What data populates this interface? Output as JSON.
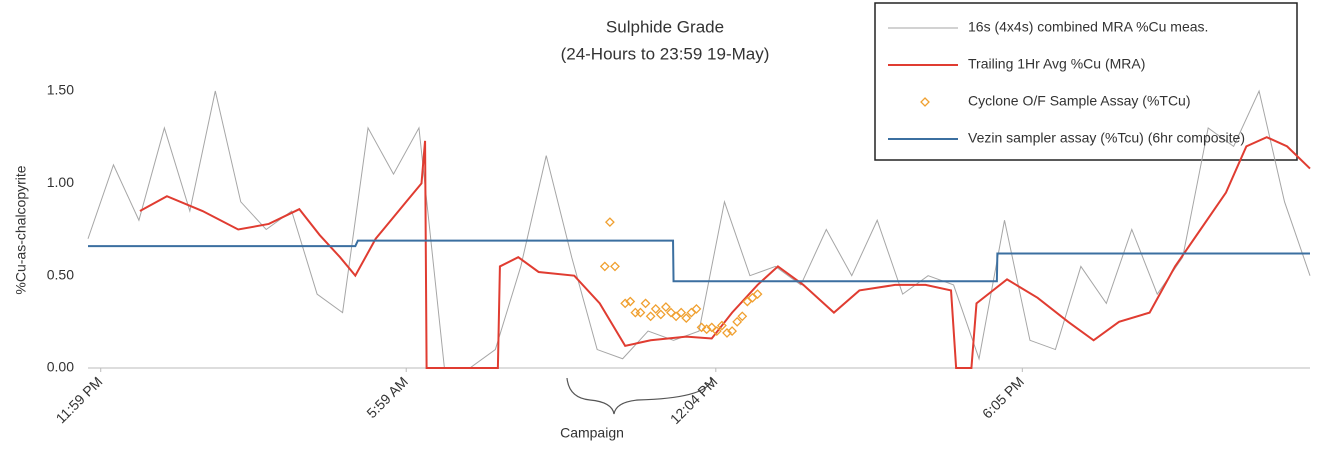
{
  "chart_data": {
    "type": "line",
    "title": "Sulphide Grade",
    "subtitle": "(24-Hours to 23:59 19-May)",
    "y_label": "%Cu-as-chalcopyrite",
    "annotation": "Campaign",
    "xlim": [
      -0.25,
      23.75
    ],
    "xticks": [
      {
        "value": 0,
        "label": "11:59 PM"
      },
      {
        "value": 6,
        "label": "5:59 AM"
      },
      {
        "value": 12.08,
        "label": "12:04 PM"
      },
      {
        "value": 18.1,
        "label": "6:05 PM"
      }
    ],
    "ylim": [
      0,
      1.5
    ],
    "yticks": [
      {
        "value": 0,
        "label": "0.00"
      },
      {
        "value": 0.5,
        "label": "0.50"
      },
      {
        "value": 1,
        "label": "1.00"
      },
      {
        "value": 1.5,
        "label": "1.50"
      }
    ],
    "grid": false,
    "legend": "upper right",
    "series": [
      {
        "name": "16s (4x4s) combined MRA %Cu meas.",
        "color": "#a6a6a6",
        "kind": "line",
        "x": [
          -0.25,
          0.25,
          0.75,
          1.25,
          1.75,
          2.25,
          2.75,
          3.25,
          3.75,
          4.25,
          4.75,
          5.25,
          5.75,
          6.25,
          6.75,
          7.25,
          7.75,
          8.25,
          8.75,
          9.25,
          9.75,
          10.25,
          10.75,
          11.25,
          11.75,
          12.25,
          12.75,
          13.25,
          13.75,
          14.25,
          14.75,
          15.25,
          15.75,
          16.25,
          16.75,
          17.25,
          17.75,
          18.25,
          18.75,
          19.25,
          19.75,
          20.25,
          20.75,
          21.25,
          21.75,
          22.25,
          22.75,
          23.25,
          23.75
        ],
        "values": [
          0.7,
          1.1,
          0.8,
          1.3,
          0.85,
          1.5,
          0.9,
          0.75,
          0.85,
          0.4,
          0.3,
          1.3,
          1.05,
          1.3,
          0,
          0,
          0.1,
          0.55,
          1.15,
          0.6,
          0.1,
          0.05,
          0.2,
          0.15,
          0.2,
          0.9,
          0.5,
          0.55,
          0.45,
          0.75,
          0.5,
          0.8,
          0.4,
          0.5,
          0.45,
          0.05,
          0.8,
          0.15,
          0.1,
          0.55,
          0.35,
          0.75,
          0.4,
          0.6,
          1.3,
          1.2,
          1.5,
          0.9,
          0.5
        ]
      },
      {
        "name": "Trailing 1Hr Avg %Cu (MRA)",
        "color": "#e03c31",
        "kind": "line",
        "x": [
          0.77,
          1.3,
          2.0,
          2.7,
          3.3,
          3.9,
          4.3,
          4.7,
          5.0,
          5.4,
          6.0,
          6.3,
          6.37,
          6.4,
          7.8,
          7.84,
          8.2,
          8.6,
          9.3,
          9.8,
          10.3,
          10.8,
          11.5,
          12.0,
          12.4,
          12.9,
          13.3,
          13.8,
          14.4,
          14.9,
          15.6,
          16.2,
          16.7,
          16.8,
          17.1,
          17.2,
          17.8,
          18.4,
          19.0,
          19.5,
          20.0,
          20.6,
          21.1,
          21.6,
          22.1,
          22.5,
          22.9,
          23.3,
          23.75
        ],
        "values": [
          0.85,
          0.93,
          0.85,
          0.75,
          0.78,
          0.86,
          0.72,
          0.6,
          0.5,
          0.7,
          0.9,
          1.0,
          1.23,
          0,
          0,
          0.55,
          0.6,
          0.52,
          0.5,
          0.35,
          0.12,
          0.15,
          0.17,
          0.16,
          0.3,
          0.45,
          0.55,
          0.45,
          0.3,
          0.42,
          0.45,
          0.45,
          0.42,
          0,
          0,
          0.35,
          0.48,
          0.38,
          0.25,
          0.15,
          0.25,
          0.3,
          0.55,
          0.75,
          0.95,
          1.2,
          1.25,
          1.2,
          1.08
        ]
      },
      {
        "name": "Cyclone O/F Sample Assay (%TCu)",
        "color": "#f0a030",
        "kind": "scatter",
        "x": [
          9.9,
          10.0,
          10.1,
          10.3,
          10.4,
          10.5,
          10.6,
          10.7,
          10.8,
          10.9,
          11.0,
          11.1,
          11.2,
          11.3,
          11.4,
          11.5,
          11.6,
          11.7,
          11.8,
          11.9,
          12.0,
          12.1,
          12.2,
          12.3,
          12.4,
          12.5,
          12.6,
          12.7,
          12.8,
          12.9
        ],
        "values": [
          0.55,
          0.79,
          0.55,
          0.35,
          0.36,
          0.3,
          0.3,
          0.35,
          0.28,
          0.32,
          0.29,
          0.33,
          0.3,
          0.28,
          0.3,
          0.27,
          0.3,
          0.32,
          0.22,
          0.21,
          0.22,
          0.2,
          0.23,
          0.19,
          0.2,
          0.25,
          0.28,
          0.36,
          0.38,
          0.4
        ]
      },
      {
        "name": "Vezin sampler assay (%Tcu) (6hr composite)",
        "color": "#3b6fa0",
        "kind": "line",
        "x": [
          -0.25,
          5.0,
          5.05,
          11.24,
          11.25,
          17.6,
          17.61,
          23.75
        ],
        "values": [
          0.66,
          0.66,
          0.69,
          0.69,
          0.47,
          0.47,
          0.62,
          0.62
        ]
      }
    ]
  }
}
